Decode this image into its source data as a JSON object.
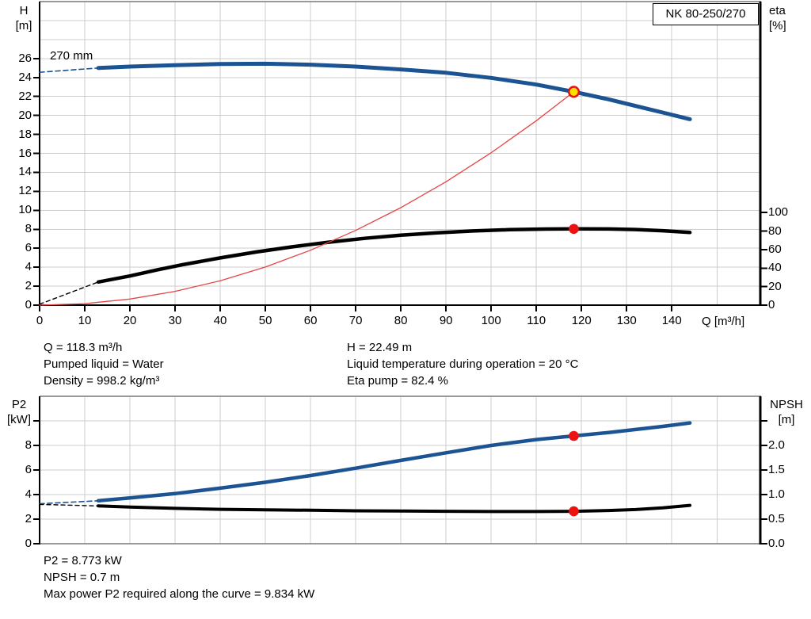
{
  "title_box": "NK 80-250/270",
  "info_top": {
    "left": [
      "Q = 118.3 m³/h",
      "Pumped liquid = Water",
      "Density = 998.2 kg/m³"
    ],
    "right": [
      "H = 22.49 m",
      "Liquid temperature during operation = 20 °C",
      "Eta pump = 82.4 %"
    ]
  },
  "info_bottom": [
    "P2 = 8.773 kW",
    "NPSH = 0.7 m",
    "Max power P2 required along the curve = 9.834 kW"
  ],
  "colors": {
    "curve_blue": "#1c5392",
    "curve_red": "#e64545",
    "marker_red": "#ee1111",
    "marker_yellow": "#ffdf00",
    "grid": "#cccccc",
    "border_gray": "#999999",
    "axis_black": "#000000"
  },
  "chart_data": [
    {
      "type": "line",
      "name": "hq-eta-chart",
      "curve_label": "270 mm",
      "x_axis": {
        "max": 159.6,
        "grid_step": 10,
        "ticks": [
          0,
          10,
          20,
          30,
          40,
          50,
          60,
          70,
          80,
          90,
          100,
          110,
          120,
          130,
          140
        ],
        "title": "Q [m³/h]"
      },
      "left_axis": {
        "title_lines": [
          "H",
          "[m]"
        ],
        "max": 32,
        "grid_step": 2,
        "ticks": [
          0,
          2,
          4,
          6,
          8,
          10,
          12,
          14,
          16,
          18,
          20,
          22,
          24,
          26
        ]
      },
      "right_axis": {
        "title_lines": [
          "eta",
          "[%]"
        ],
        "max": 328,
        "ticks": [
          0,
          20,
          40,
          60,
          80,
          100
        ]
      },
      "series": [
        {
          "name": "head-curve-lead",
          "axis": "left",
          "color": "#1c5392",
          "width": 1.6,
          "dash": "6,4",
          "points": [
            [
              0,
              24.55
            ],
            [
              13,
              25.0
            ]
          ]
        },
        {
          "name": "eta-curve-lead",
          "axis": "right",
          "color": "#000000",
          "width": 1.4,
          "dash": "5,4",
          "points": [
            [
              0,
              1
            ],
            [
              13,
              25
            ]
          ]
        },
        {
          "name": "eta-curve",
          "axis": "right",
          "color": "#000000",
          "width": 4.5,
          "dash": "",
          "points": [
            [
              13,
              25
            ],
            [
              20,
              31.5
            ],
            [
              26,
              38
            ],
            [
              32,
              44
            ],
            [
              40,
              51
            ],
            [
              48,
              57.5
            ],
            [
              56,
              63
            ],
            [
              64,
              68
            ],
            [
              72,
              72.2
            ],
            [
              80,
              75.6
            ],
            [
              88,
              78.2
            ],
            [
              96,
              80.2
            ],
            [
              104,
              81.5
            ],
            [
              112,
              82.2
            ],
            [
              118.3,
              82.4
            ],
            [
              126,
              82.3
            ],
            [
              132,
              81.7
            ],
            [
              138,
              80.4
            ],
            [
              144,
              78.5
            ]
          ]
        },
        {
          "name": "system-curve",
          "axis": "left",
          "color": "#e64545",
          "width": 1.3,
          "dash": "",
          "points": [
            [
              0,
              0
            ],
            [
              10,
              0.16
            ],
            [
              20,
              0.64
            ],
            [
              30,
              1.45
            ],
            [
              40,
              2.57
            ],
            [
              50,
              4.02
            ],
            [
              60,
              5.79
            ],
            [
              70,
              7.88
            ],
            [
              80,
              10.28
            ],
            [
              90,
              13.01
            ],
            [
              100,
              16.07
            ],
            [
              110,
              19.44
            ],
            [
              118.3,
              22.49
            ]
          ]
        },
        {
          "name": "head-curve",
          "axis": "left",
          "color": "#1c5392",
          "width": 5,
          "dash": "",
          "points": [
            [
              13,
              25.0
            ],
            [
              20,
              25.15
            ],
            [
              30,
              25.3
            ],
            [
              40,
              25.42
            ],
            [
              50,
              25.45
            ],
            [
              60,
              25.35
            ],
            [
              70,
              25.15
            ],
            [
              80,
              24.85
            ],
            [
              90,
              24.5
            ],
            [
              100,
              23.95
            ],
            [
              110,
              23.25
            ],
            [
              118.3,
              22.49
            ],
            [
              126,
              21.7
            ],
            [
              132,
              21.0
            ],
            [
              138,
              20.3
            ],
            [
              144,
              19.6
            ]
          ]
        }
      ],
      "markers": [
        {
          "name": "duty-point-head",
          "axis": "left",
          "q": 118.3,
          "v": 22.49,
          "r": 6.3,
          "fill": "#ffdf00",
          "stroke": "#e81111",
          "sw": 2.5
        },
        {
          "name": "duty-point-eta",
          "axis": "right",
          "q": 118.3,
          "v": 82.4,
          "r": 6.3,
          "fill": "#ee1111",
          "stroke": "none",
          "sw": 0
        }
      ]
    },
    {
      "type": "line",
      "name": "p2-npsh-chart",
      "curve_label": "",
      "x_axis": {
        "max": 159.6,
        "grid_step": 10,
        "ticks": [],
        "title": ""
      },
      "left_axis": {
        "title_lines": [
          "P2",
          "[kW]"
        ],
        "max": 12,
        "grid_step": 2,
        "ticks": [
          0,
          2,
          4,
          6,
          8,
          10
        ],
        "labels": [
          "0",
          "2",
          "4",
          "6",
          "8",
          ""
        ]
      },
      "right_axis": {
        "title_lines": [
          "NPSH",
          "[m]"
        ],
        "max": 3,
        "ticks": [
          0,
          0.5,
          1,
          1.5,
          2,
          2.5
        ],
        "labels": [
          "0.0",
          "0.5",
          "1.0",
          "1.5",
          "2.0",
          ""
        ]
      },
      "series": [
        {
          "name": "p2-curve-lead",
          "axis": "left",
          "color": "#1c5392",
          "width": 1.6,
          "dash": "6,4",
          "points": [
            [
              0,
              3.25
            ],
            [
              13,
              3.5
            ]
          ]
        },
        {
          "name": "npsh-curve-lead",
          "axis": "right",
          "color": "#000000",
          "width": 1.4,
          "dash": "5,4",
          "points": [
            [
              0,
              0.8
            ],
            [
              13,
              0.77
            ]
          ]
        },
        {
          "name": "npsh-curve",
          "axis": "right",
          "color": "#000000",
          "width": 4,
          "dash": "",
          "points": [
            [
              13,
              0.77
            ],
            [
              20,
              0.745
            ],
            [
              30,
              0.72
            ],
            [
              40,
              0.7
            ],
            [
              50,
              0.69
            ],
            [
              60,
              0.68
            ],
            [
              70,
              0.67
            ],
            [
              80,
              0.665
            ],
            [
              90,
              0.66
            ],
            [
              100,
              0.655
            ],
            [
              110,
              0.655
            ],
            [
              118.3,
              0.66
            ],
            [
              126,
              0.675
            ],
            [
              132,
              0.695
            ],
            [
              138,
              0.73
            ],
            [
              144,
              0.78
            ]
          ]
        },
        {
          "name": "p2-curve",
          "axis": "left",
          "color": "#1c5392",
          "width": 4.5,
          "dash": "",
          "points": [
            [
              13,
              3.5
            ],
            [
              20,
              3.72
            ],
            [
              30,
              4.08
            ],
            [
              40,
              4.52
            ],
            [
              50,
              5.0
            ],
            [
              60,
              5.55
            ],
            [
              70,
              6.15
            ],
            [
              80,
              6.78
            ],
            [
              90,
              7.4
            ],
            [
              100,
              8.0
            ],
            [
              110,
              8.48
            ],
            [
              118.3,
              8.773
            ],
            [
              126,
              9.05
            ],
            [
              132,
              9.3
            ],
            [
              138,
              9.55
            ],
            [
              144,
              9.834
            ]
          ]
        }
      ],
      "markers": [
        {
          "name": "duty-point-p2",
          "axis": "left",
          "q": 118.3,
          "v": 8.773,
          "r": 6.3,
          "fill": "#ee1111",
          "stroke": "none",
          "sw": 0
        },
        {
          "name": "duty-point-npsh",
          "axis": "right",
          "q": 118.3,
          "v": 0.66,
          "r": 6.3,
          "fill": "#ee1111",
          "stroke": "none",
          "sw": 0
        }
      ]
    }
  ]
}
